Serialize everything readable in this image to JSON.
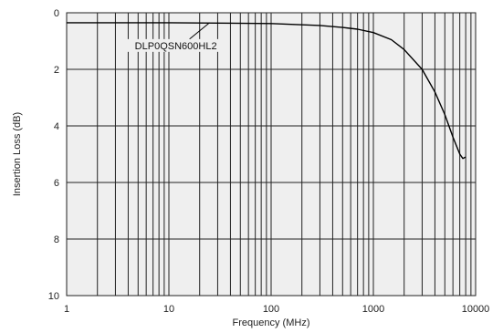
{
  "chart_data": {
    "type": "line",
    "xlabel": "Frequency (MHz)",
    "ylabel": "Insertion Loss (dB)",
    "x_scale": "log",
    "xlim": [
      1,
      10000
    ],
    "ylim": [
      0,
      10
    ],
    "y_inverted": true,
    "grid": true,
    "x_ticks": [
      "1",
      "10",
      "100",
      "1000",
      "10000"
    ],
    "y_ticks": [
      "0",
      "2",
      "4",
      "6",
      "8",
      "10"
    ],
    "series": [
      {
        "name": "DLP0QSN600HL2",
        "x": [
          1,
          10,
          100,
          300,
          500,
          700,
          1000,
          1500,
          2000,
          3000,
          4000,
          5000,
          6000,
          7000,
          7500,
          8000
        ],
        "y": [
          0.35,
          0.35,
          0.38,
          0.45,
          0.52,
          0.58,
          0.7,
          0.95,
          1.3,
          2.0,
          2.8,
          3.6,
          4.4,
          5.0,
          5.15,
          5.1
        ]
      }
    ],
    "annotations": [
      {
        "text": "DLP0QSN600HL2",
        "x": 25,
        "y": 0.35
      }
    ]
  }
}
